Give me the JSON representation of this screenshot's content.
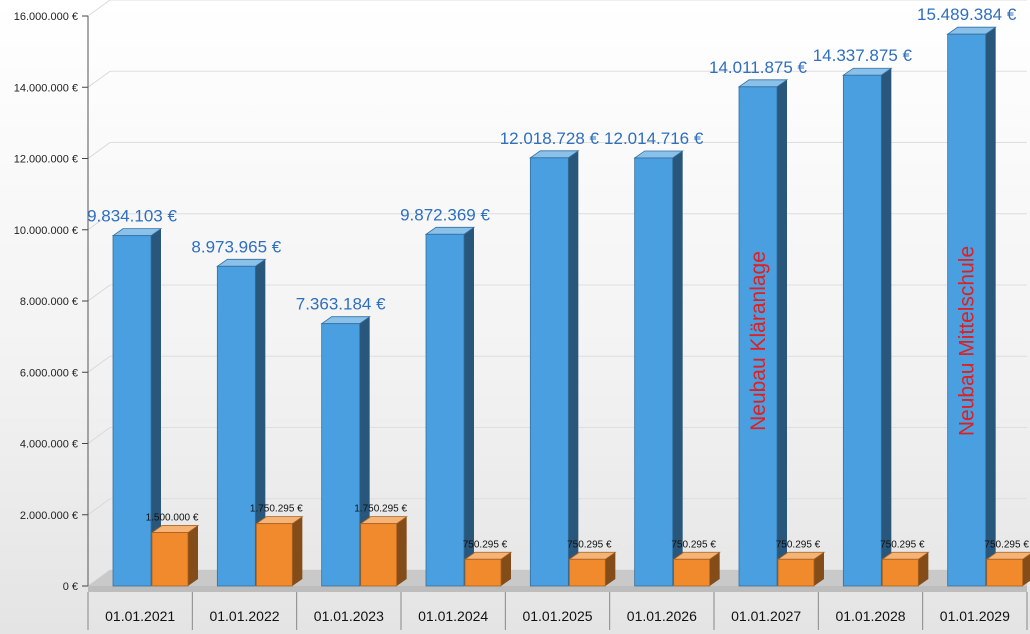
{
  "chart_data": {
    "type": "bar",
    "categories": [
      "01.01.2021",
      "01.01.2022",
      "01.01.2023",
      "01.01.2024",
      "01.01.2025",
      "01.01.2026",
      "01.01.2027",
      "01.01.2028",
      "01.01.2029"
    ],
    "series": [
      {
        "values": [
          9834103,
          8973965,
          7363184,
          9872369,
          12018728,
          12014716,
          14011875,
          14337875,
          15489384
        ],
        "labels": [
          "9.834.103 €",
          "8.973.965 €",
          "7.363.184 €",
          "9.872.369 €",
          "12.018.728 €",
          "12.014.716 €",
          "14.011.875 €",
          "14.337.875 €",
          "15.489.384 €"
        ],
        "color": "#4a9fe0"
      },
      {
        "values": [
          1500000,
          1750295,
          1750295,
          750295,
          750295,
          750295,
          750295,
          750295,
          750295
        ],
        "labels": [
          "1.500.000 €",
          "1.750.295 €",
          "1.750.295 €",
          "750.295 €",
          "750.295 €",
          "750.295 €",
          "750.295 €",
          "750.295 €",
          "750.295 €"
        ],
        "color": "#f08a2c"
      }
    ],
    "yticks": [
      "0 €",
      "2.000.000 €",
      "4.000.000 €",
      "6.000.000 €",
      "8.000.000 €",
      "10.000.000 €",
      "12.000.000 €",
      "14.000.000 €",
      "16.000.000 €"
    ],
    "ylim": [
      0,
      16000000
    ],
    "annotations": [
      {
        "category": "01.01.2027",
        "text": "Neubau Kläranlage",
        "color": "#e02020"
      },
      {
        "category": "01.01.2029",
        "text": "Neubau Mittelschule",
        "color": "#e02020"
      }
    ],
    "label_color": "#2f6fbf",
    "grid": true,
    "title": "",
    "xlabel": "",
    "ylabel": ""
  }
}
